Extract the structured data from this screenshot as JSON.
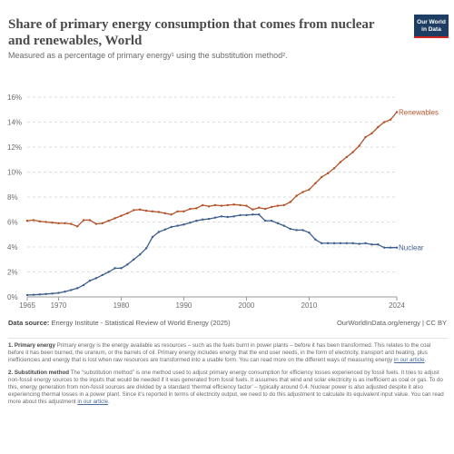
{
  "title": "Share of primary energy consumption that comes from nuclear and renewables, World",
  "subtitle": "Measured as a percentage of primary energy¹ using the substitution method².",
  "logo": {
    "line1": "Our World",
    "line2": "in Data"
  },
  "source_label": "Data source:",
  "source_text": "Energy Institute - Statistical Review of World Energy (2025)",
  "site_link": "OurWorldInData.org/energy | CC BY",
  "notes": [
    {
      "heading": "1. Primary energy",
      "text": "Primary energy is the energy available as resources – such as the fuels burnt in power plants – before it has been transformed. This relates to the coal before it has been burned, the uranium, or the barrels of oil. Primary energy includes energy that the end user needs, in the form of electricity, transport and heating, plus inefficiencies and energy that is lost when raw resources are transformed into a usable form. You can read more on the different ways of measuring energy",
      "link": "in our article",
      "end": "."
    },
    {
      "heading": "2. Substitution method",
      "text": "The “substitution method” is one method used to adjust primary energy consumption for efficiency losses experienced by fossil fuels. It tries to adjust non-fossil energy sources to the inputs that would be needed if it was generated from fossil fuels. It assumes that wind and solar electricity is as inefficient as coal or gas. To do this, energy generation from non-fossil sources are divided by a standard ‘thermal efficiency factor’ – typically around 0.4. Nuclear power is also adjusted despite it also experiencing thermal losses in a power plant. Since it’s reported in terms of electricity output, we need to do this adjustment to calculate its equivalent input value. You can read more about this adjustment",
      "link": "in our article",
      "end": "."
    }
  ],
  "chart_data": {
    "type": "line",
    "title": "Share of primary energy consumption that comes from nuclear and renewables, World",
    "xlim": [
      1965,
      2024
    ],
    "ylim": [
      0,
      16
    ],
    "x_ticks": [
      "1965",
      "1970",
      "1980",
      "1990",
      "2000",
      "2010",
      "2024"
    ],
    "y_ticks": [
      "0%",
      "2%",
      "4%",
      "6%",
      "8%",
      "10%",
      "12%",
      "14%",
      "16%"
    ],
    "grid": true,
    "series": [
      {
        "name": "Renewables",
        "color": "#b4532a",
        "x": [
          1965,
          1966,
          1967,
          1968,
          1969,
          1970,
          1971,
          1972,
          1973,
          1974,
          1975,
          1976,
          1977,
          1978,
          1979,
          1980,
          1981,
          1982,
          1983,
          1984,
          1985,
          1986,
          1987,
          1988,
          1989,
          1990,
          1991,
          1992,
          1993,
          1994,
          1995,
          1996,
          1997,
          1998,
          1999,
          2000,
          2001,
          2002,
          2003,
          2004,
          2005,
          2006,
          2007,
          2008,
          2009,
          2010,
          2011,
          2012,
          2013,
          2014,
          2015,
          2016,
          2017,
          2018,
          2019,
          2020,
          2021,
          2022,
          2023,
          2024
        ],
        "values": [
          6.1,
          6.15,
          6.05,
          6.0,
          5.95,
          5.9,
          5.9,
          5.85,
          5.65,
          6.15,
          6.15,
          5.85,
          5.9,
          6.1,
          6.3,
          6.5,
          6.7,
          6.95,
          7.0,
          6.9,
          6.85,
          6.8,
          6.7,
          6.6,
          6.85,
          6.85,
          7.05,
          7.1,
          7.35,
          7.25,
          7.35,
          7.3,
          7.35,
          7.4,
          7.35,
          7.3,
          7.0,
          7.15,
          7.05,
          7.2,
          7.3,
          7.35,
          7.6,
          8.1,
          8.4,
          8.6,
          9.1,
          9.6,
          9.9,
          10.3,
          10.8,
          11.2,
          11.6,
          12.1,
          12.8,
          13.1,
          13.6,
          14.0,
          14.2,
          14.8
        ]
      },
      {
        "name": "Nuclear",
        "color": "#3d5f8e",
        "x": [
          1965,
          1966,
          1967,
          1968,
          1969,
          1970,
          1971,
          1972,
          1973,
          1974,
          1975,
          1976,
          1977,
          1978,
          1979,
          1980,
          1981,
          1982,
          1983,
          1984,
          1985,
          1986,
          1987,
          1988,
          1989,
          1990,
          1991,
          1992,
          1993,
          1994,
          1995,
          1996,
          1997,
          1998,
          1999,
          2000,
          2001,
          2002,
          2003,
          2004,
          2005,
          2006,
          2007,
          2008,
          2009,
          2010,
          2011,
          2012,
          2013,
          2014,
          2015,
          2016,
          2017,
          2018,
          2019,
          2020,
          2021,
          2022,
          2023,
          2024
        ],
        "values": [
          0.15,
          0.17,
          0.2,
          0.23,
          0.27,
          0.32,
          0.42,
          0.55,
          0.7,
          0.95,
          1.3,
          1.5,
          1.75,
          2.0,
          2.3,
          2.3,
          2.6,
          3.0,
          3.4,
          3.9,
          4.8,
          5.2,
          5.4,
          5.6,
          5.7,
          5.8,
          5.95,
          6.1,
          6.2,
          6.25,
          6.35,
          6.45,
          6.4,
          6.45,
          6.55,
          6.55,
          6.6,
          6.6,
          6.1,
          6.1,
          5.9,
          5.7,
          5.45,
          5.35,
          5.35,
          5.15,
          4.6,
          4.3,
          4.3,
          4.3,
          4.3,
          4.3,
          4.3,
          4.25,
          4.3,
          4.2,
          4.2,
          3.95,
          3.95,
          3.95
        ]
      }
    ]
  }
}
